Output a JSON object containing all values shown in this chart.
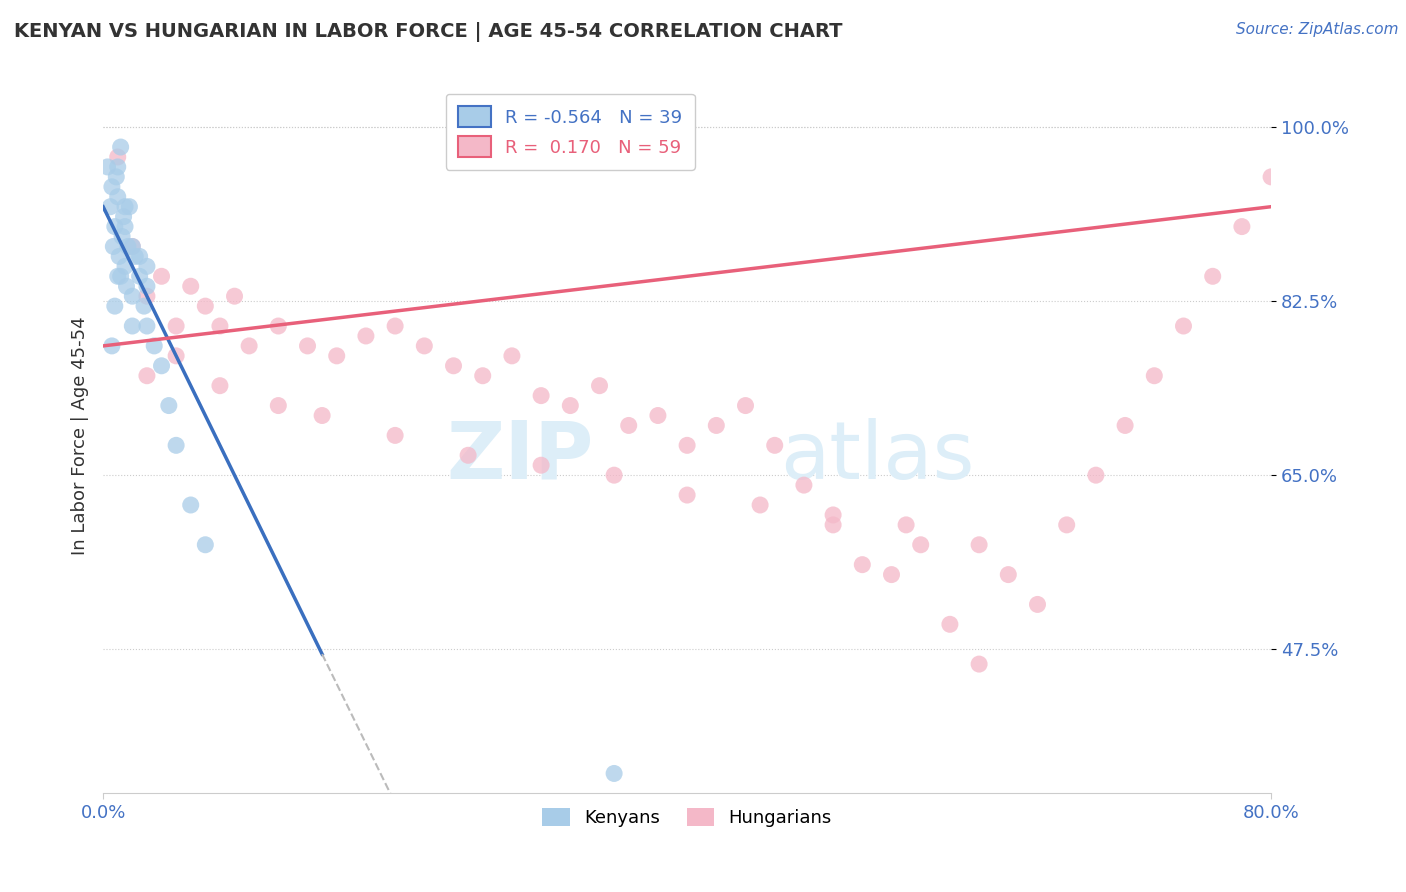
{
  "title": "KENYAN VS HUNGARIAN IN LABOR FORCE | AGE 45-54 CORRELATION CHART",
  "ylabel": "In Labor Force | Age 45-54",
  "source": "Source: ZipAtlas.com",
  "kenyan_R": -0.564,
  "kenyan_N": 39,
  "hungarian_R": 0.17,
  "hungarian_N": 59,
  "kenyan_color": "#a8cce8",
  "hungarian_color": "#f4b8c8",
  "kenyan_line_color": "#3a6fbf",
  "hungarian_line_color": "#e8607a",
  "dashed_line_color": "#bbbbbb",
  "legend_kenyan_box": "#a8cce8",
  "legend_hungarian_box": "#f4b8c8",
  "xlim": [
    0.0,
    80.0
  ],
  "ylim": [
    33.0,
    105.0
  ],
  "yticks": [
    47.5,
    65.0,
    82.5,
    100.0
  ],
  "watermark_color": "#ddeef8",
  "kenyan_x": [
    0.3,
    0.5,
    0.6,
    0.7,
    0.8,
    0.9,
    1.0,
    1.1,
    1.2,
    1.3,
    1.4,
    1.5,
    1.6,
    1.7,
    1.8,
    2.0,
    2.2,
    2.5,
    2.8,
    3.0,
    3.5,
    4.0,
    1.0,
    1.2,
    2.0,
    5.0,
    6.0,
    7.0,
    4.5,
    3.0,
    2.5,
    1.5,
    0.8,
    0.6,
    3.0,
    2.0,
    1.0,
    1.5,
    35.0
  ],
  "kenyan_y": [
    96.0,
    92.0,
    94.0,
    88.0,
    90.0,
    95.0,
    93.0,
    87.0,
    85.0,
    89.0,
    91.0,
    86.0,
    84.0,
    88.0,
    92.0,
    83.0,
    87.0,
    85.0,
    82.0,
    80.0,
    78.0,
    76.0,
    96.0,
    98.0,
    80.0,
    68.0,
    62.0,
    58.0,
    72.0,
    84.0,
    87.0,
    90.0,
    82.0,
    78.0,
    86.0,
    88.0,
    85.0,
    92.0,
    35.0
  ],
  "hungarian_x": [
    1.0,
    2.0,
    3.0,
    4.0,
    5.0,
    6.0,
    7.0,
    8.0,
    9.0,
    10.0,
    12.0,
    14.0,
    16.0,
    18.0,
    20.0,
    22.0,
    24.0,
    26.0,
    28.0,
    30.0,
    32.0,
    34.0,
    36.0,
    38.0,
    40.0,
    42.0,
    44.0,
    46.0,
    48.0,
    50.0,
    52.0,
    54.0,
    56.0,
    58.0,
    60.0,
    62.0,
    64.0,
    66.0,
    68.0,
    70.0,
    72.0,
    74.0,
    76.0,
    78.0,
    80.0,
    3.0,
    5.0,
    8.0,
    12.0,
    15.0,
    20.0,
    25.0,
    30.0,
    35.0,
    40.0,
    45.0,
    50.0,
    55.0,
    60.0
  ],
  "hungarian_y": [
    97.0,
    88.0,
    83.0,
    85.0,
    80.0,
    84.0,
    82.0,
    80.0,
    83.0,
    78.0,
    80.0,
    78.0,
    77.0,
    79.0,
    80.0,
    78.0,
    76.0,
    75.0,
    77.0,
    73.0,
    72.0,
    74.0,
    70.0,
    71.0,
    68.0,
    70.0,
    72.0,
    68.0,
    64.0,
    60.0,
    56.0,
    55.0,
    58.0,
    50.0,
    46.0,
    55.0,
    52.0,
    60.0,
    65.0,
    70.0,
    75.0,
    80.0,
    85.0,
    90.0,
    95.0,
    75.0,
    77.0,
    74.0,
    72.0,
    71.0,
    69.0,
    67.0,
    66.0,
    65.0,
    63.0,
    62.0,
    61.0,
    60.0,
    58.0
  ]
}
